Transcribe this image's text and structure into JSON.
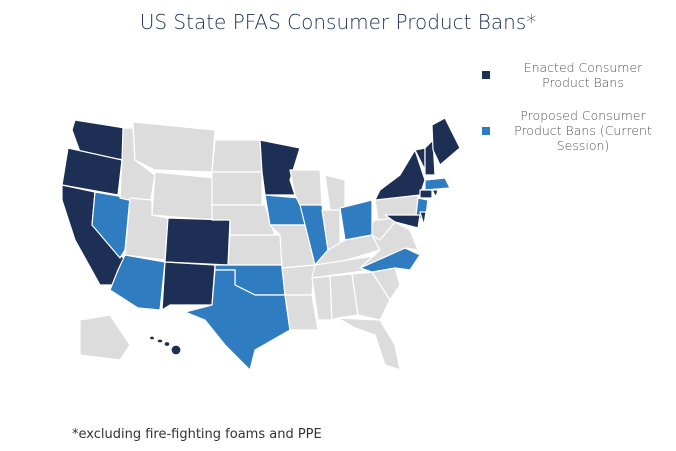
{
  "title": "US State PFAS Consumer Product Bans*",
  "legend": [
    {
      "label": "Enacted Consumer Product Bans",
      "color": "#1d2f55"
    },
    {
      "label": "Proposed Consumer Product Bans (Current Session)",
      "color": "#2f7cc0"
    }
  ],
  "footnote": "*excluding fire-fighting foams and PPE"
}
